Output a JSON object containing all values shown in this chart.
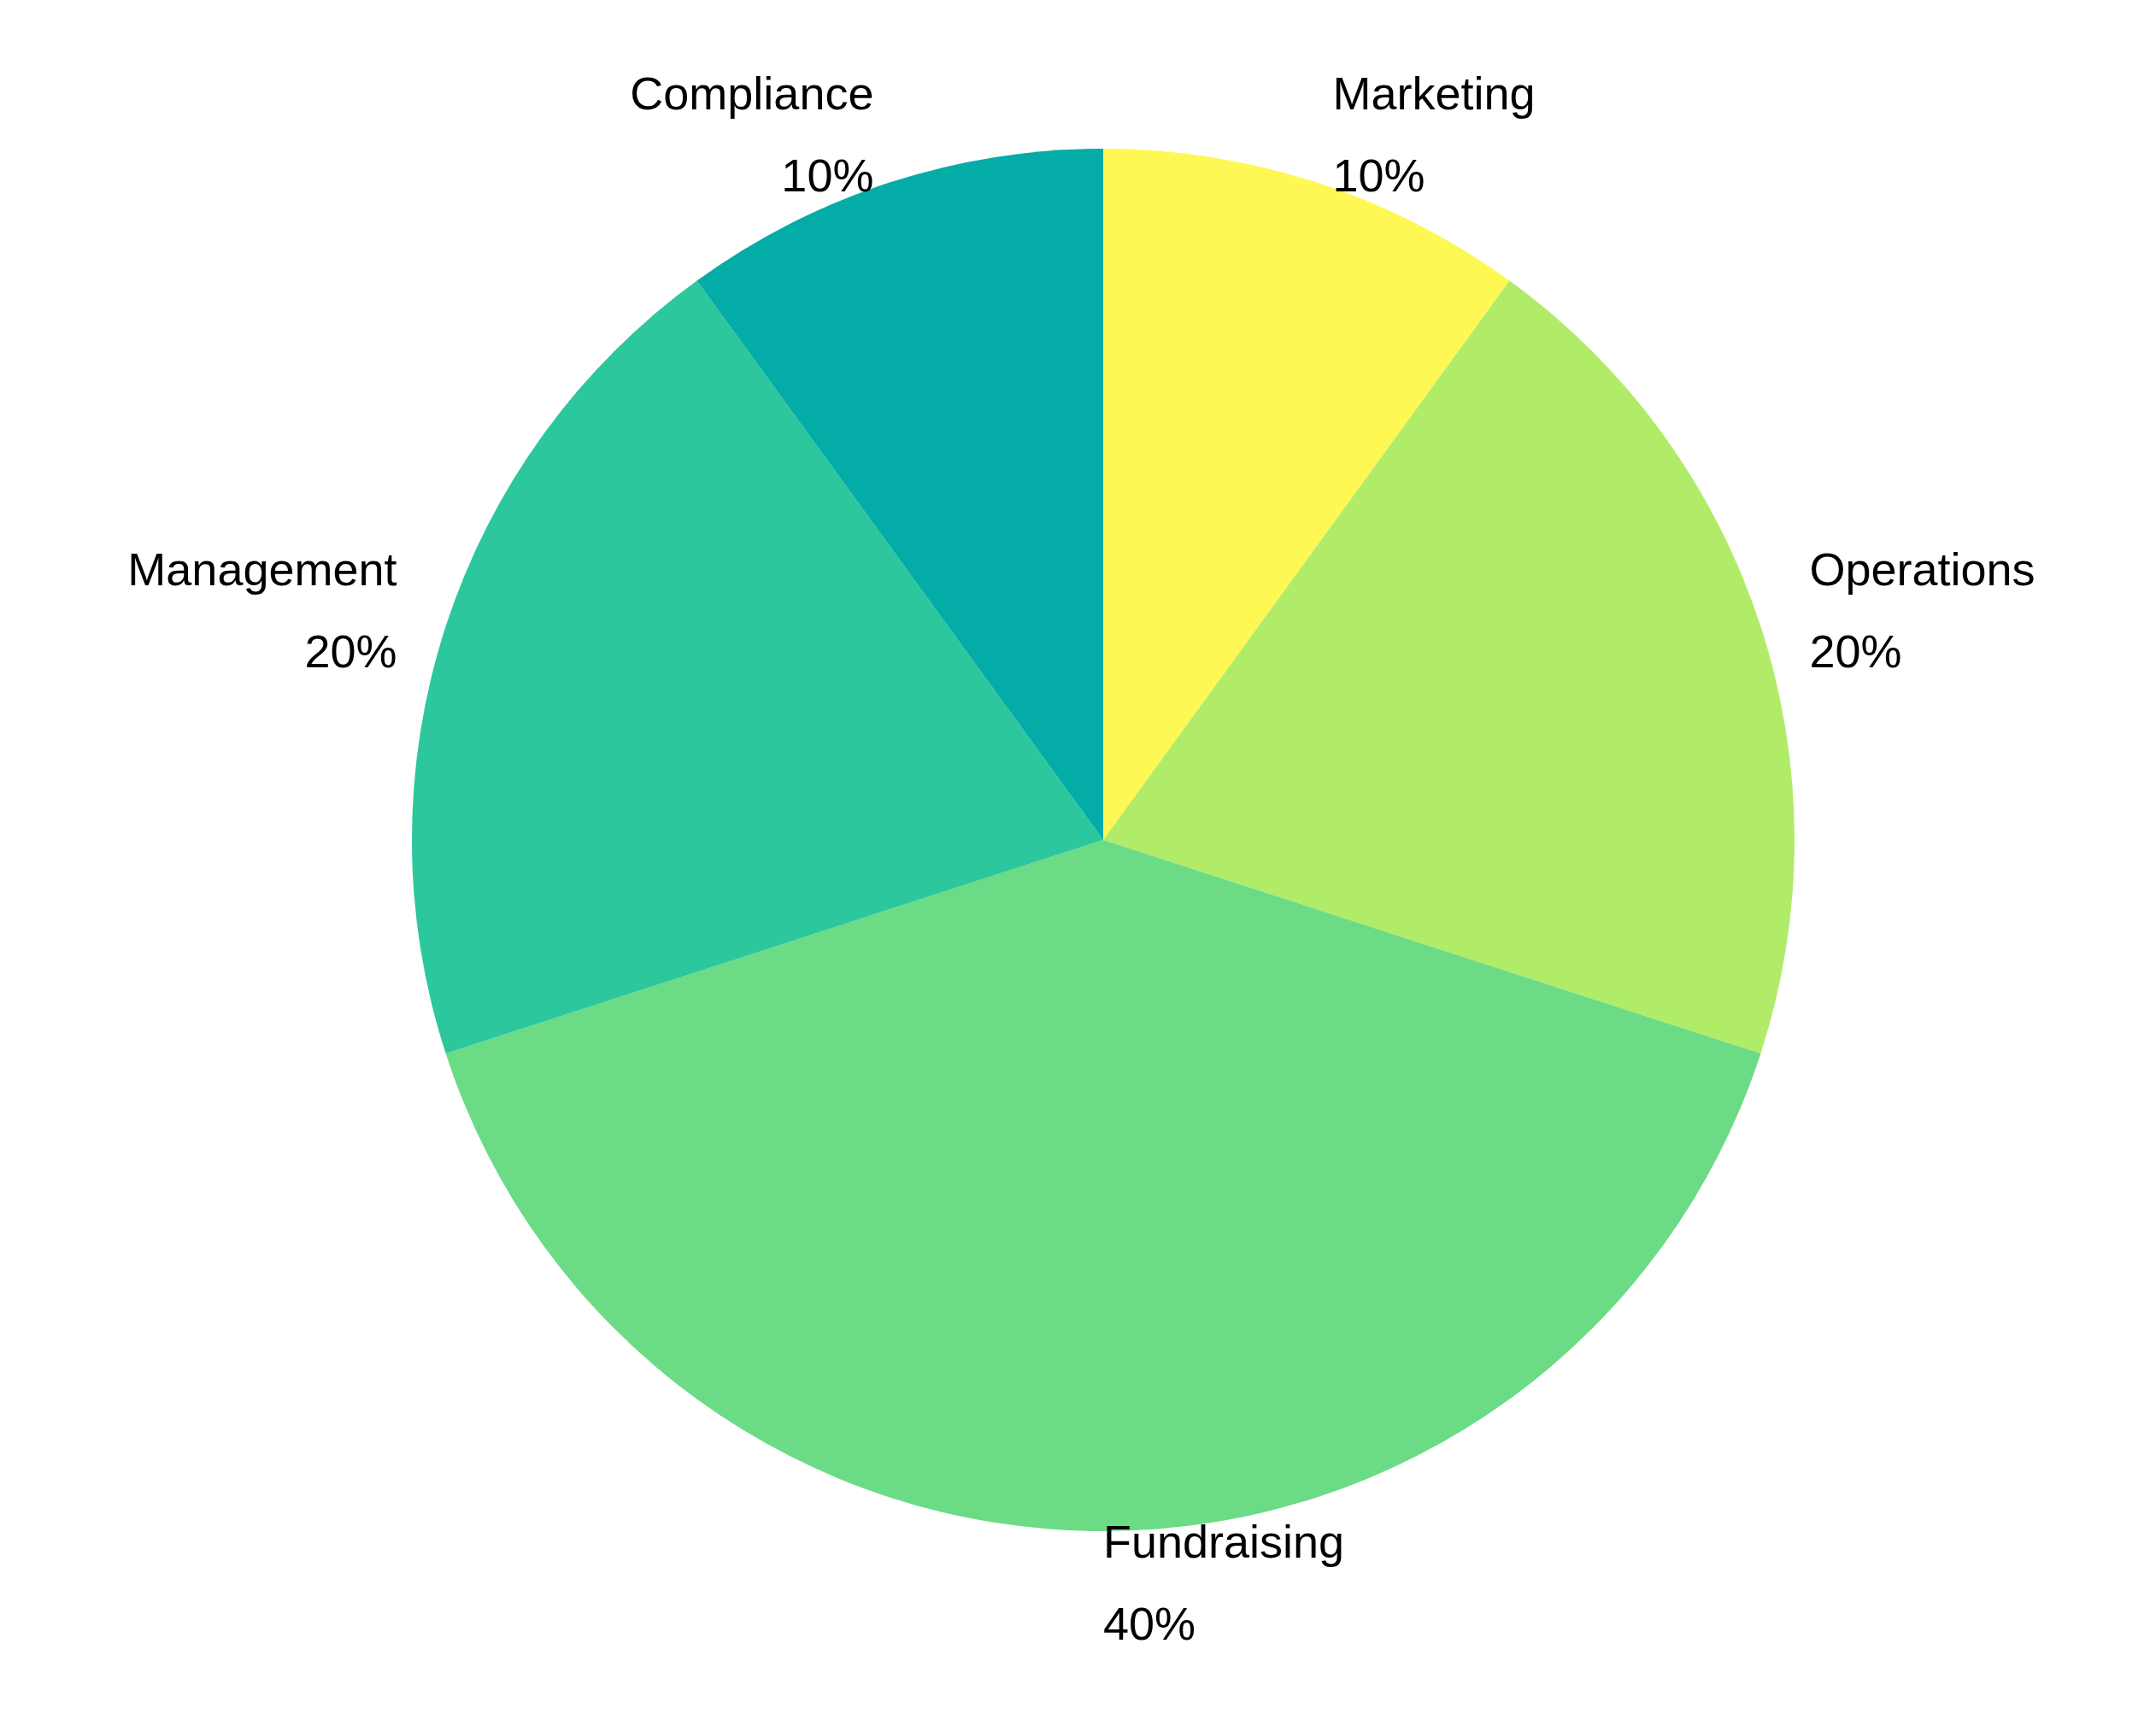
{
  "chart_data": {
    "type": "pie",
    "categories": [
      "Marketing",
      "Operations",
      "Fundraising",
      "Management",
      "Compliance"
    ],
    "values": [
      10,
      20,
      40,
      20,
      10
    ],
    "value_labels": [
      "10%",
      "20%",
      "40%",
      "20%",
      "10%"
    ],
    "colors": [
      "#fef854",
      "#b1ec68",
      "#6bdb85",
      "#2cc79d",
      "#04aca7"
    ],
    "legend": false
  }
}
